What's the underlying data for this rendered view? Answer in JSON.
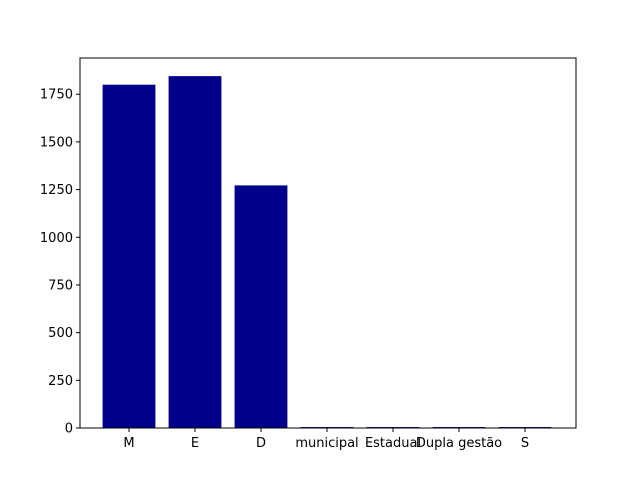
{
  "chart_data": {
    "type": "bar",
    "categories": [
      "M",
      "E",
      "D",
      "municipal",
      "Estadual",
      "Dupla gestão",
      "S"
    ],
    "values": [
      1800,
      1845,
      1272,
      5,
      5,
      5,
      5
    ],
    "ylim": [
      0,
      1940
    ],
    "yticks": [
      0,
      250,
      500,
      750,
      1000,
      1250,
      1500,
      1750
    ],
    "yticks_labels": [
      "0",
      "250",
      "500",
      "750",
      "1000",
      "1250",
      "1500",
      "1750"
    ],
    "bar_color": "#00008b",
    "grid": false,
    "title": "",
    "xlabel": "",
    "ylabel": ""
  }
}
